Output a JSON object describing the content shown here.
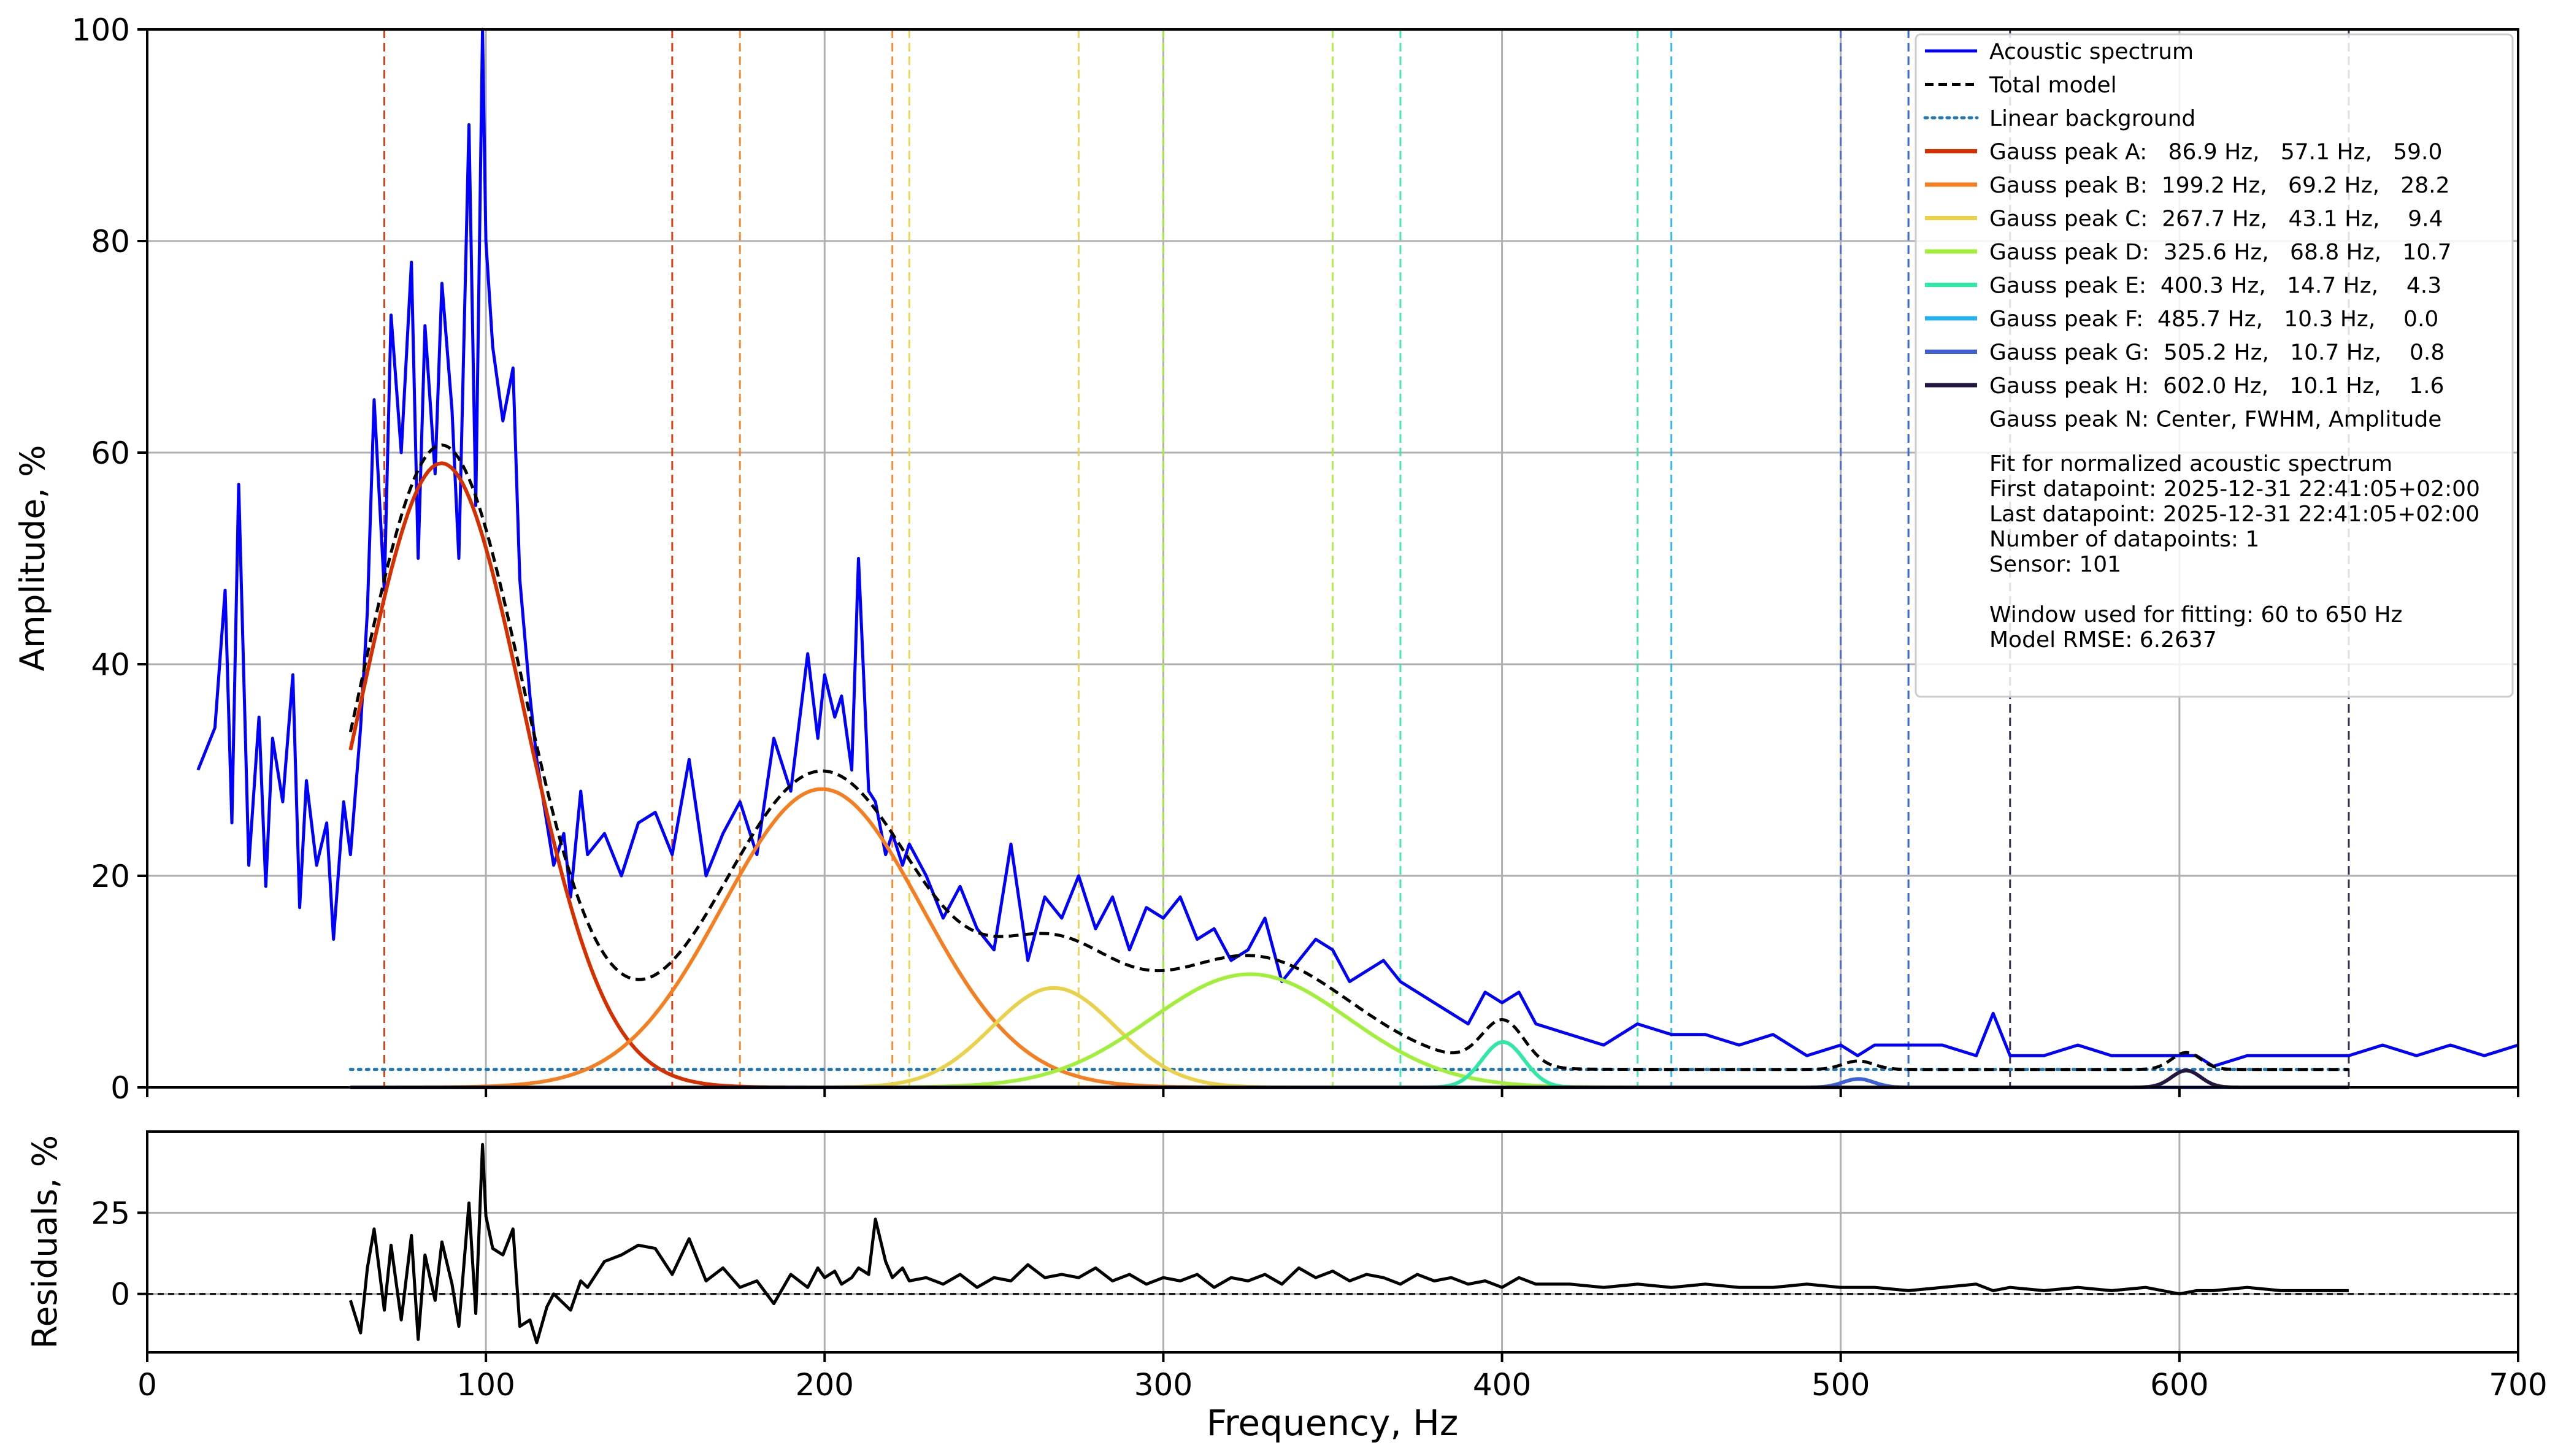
{
  "chart_data": [
    {
      "type": "line",
      "ylabel": "Amplitude, %",
      "xlim": [
        0,
        700
      ],
      "ylim": [
        0,
        100
      ],
      "x_ticks": [
        0,
        100,
        200,
        300,
        400,
        500,
        600,
        700
      ],
      "y_ticks": [
        0,
        20,
        40,
        60,
        80,
        100
      ],
      "grid": true,
      "legend_position": "top-right",
      "fit_window": [
        60,
        650
      ],
      "background": {
        "level": 1.7
      },
      "series": [
        {
          "name": "Acoustic spectrum",
          "color": "#0000ff",
          "x": [
            15,
            20,
            23,
            25,
            27,
            30,
            33,
            35,
            37,
            40,
            43,
            45,
            47,
            50,
            53,
            55,
            58,
            60,
            63,
            65,
            67,
            70,
            72,
            75,
            78,
            80,
            82,
            85,
            87,
            90,
            92,
            95,
            97,
            99,
            100,
            102,
            105,
            108,
            110,
            113,
            115,
            118,
            120,
            123,
            125,
            128,
            130,
            135,
            140,
            145,
            150,
            155,
            160,
            165,
            170,
            175,
            180,
            185,
            190,
            195,
            198,
            200,
            203,
            205,
            208,
            210,
            213,
            215,
            218,
            220,
            223,
            225,
            230,
            235,
            240,
            245,
            250,
            255,
            260,
            265,
            270,
            275,
            280,
            285,
            290,
            295,
            300,
            305,
            310,
            315,
            320,
            325,
            330,
            335,
            340,
            345,
            350,
            355,
            360,
            365,
            370,
            375,
            380,
            385,
            390,
            395,
            400,
            405,
            410,
            420,
            430,
            440,
            450,
            460,
            470,
            480,
            490,
            500,
            505,
            510,
            520,
            530,
            540,
            545,
            550,
            560,
            570,
            580,
            590,
            600,
            605,
            610,
            620,
            630,
            640,
            650,
            660,
            670,
            680,
            690,
            700
          ],
          "y": [
            30,
            34,
            47,
            25,
            57,
            21,
            35,
            19,
            33,
            27,
            39,
            17,
            29,
            21,
            25,
            14,
            27,
            22,
            34,
            45,
            65,
            47,
            73,
            60,
            78,
            50,
            72,
            58,
            76,
            64,
            50,
            91,
            55,
            100,
            80,
            70,
            63,
            68,
            48,
            37,
            31,
            25,
            21,
            24,
            18,
            28,
            22,
            24,
            20,
            25,
            26,
            22,
            31,
            20,
            24,
            27,
            22,
            33,
            28,
            41,
            33,
            39,
            35,
            37,
            30,
            50,
            28,
            27,
            22,
            24,
            21,
            23,
            20,
            16,
            19,
            15,
            13,
            23,
            12,
            18,
            16,
            20,
            15,
            18,
            13,
            17,
            16,
            18,
            14,
            15,
            12,
            13,
            16,
            10,
            12,
            14,
            13,
            10,
            11,
            12,
            10,
            9,
            8,
            7,
            6,
            9,
            8,
            9,
            6,
            5,
            4,
            6,
            5,
            5,
            4,
            5,
            3,
            4,
            3,
            4,
            4,
            4,
            3,
            7,
            3,
            3,
            4,
            3,
            3,
            3,
            3,
            2,
            3,
            3,
            3,
            3,
            4,
            3,
            4,
            3,
            4
          ]
        },
        {
          "name": "Total model",
          "color": "#000000",
          "style": "dashed",
          "x_range": [
            60,
            650
          ]
        },
        {
          "name": "Linear background",
          "color": "#1f77b4",
          "style": "dotted",
          "x_range": [
            60,
            650
          ],
          "value": 1.7
        }
      ],
      "peaks": [
        {
          "label": "Gauss peak A:   86.9 Hz,   57.1 Hz,   59.0",
          "center": 86.9,
          "fwhm": 57.1,
          "amplitude": 59.0,
          "color": "#d62f00",
          "window": [
            70,
            155
          ]
        },
        {
          "label": "Gauss peak B:  199.2 Hz,   69.2 Hz,   28.2",
          "center": 199.2,
          "fwhm": 69.2,
          "amplitude": 28.2,
          "color": "#f57f20",
          "window": [
            175,
            220
          ]
        },
        {
          "label": "Gauss peak C:  267.7 Hz,   43.1 Hz,    9.4",
          "center": 267.7,
          "fwhm": 43.1,
          "amplitude": 9.4,
          "color": "#ead14a",
          "window": [
            225,
            275
          ]
        },
        {
          "label": "Gauss peak D:  325.6 Hz,   68.8 Hz,   10.7",
          "center": 325.6,
          "fwhm": 68.8,
          "amplitude": 10.7,
          "color": "#a2ef3a",
          "window": [
            300,
            350
          ]
        },
        {
          "label": "Gauss peak E:  400.3 Hz,   14.7 Hz,    4.3",
          "center": 400.3,
          "fwhm": 14.7,
          "amplitude": 4.3,
          "color": "#2ee8a4",
          "window": [
            370,
            440
          ]
        },
        {
          "label": "Gauss peak F:  485.7 Hz,   10.3 Hz,    0.0",
          "center": 485.7,
          "fwhm": 10.3,
          "amplitude": 0.0,
          "color": "#21b2ef",
          "window": [
            450,
            520
          ]
        },
        {
          "label": "Gauss peak G:  505.2 Hz,   10.7 Hz,    0.8",
          "center": 505.2,
          "fwhm": 10.7,
          "amplitude": 0.8,
          "color": "#3c60d8",
          "window": [
            500,
            520
          ]
        },
        {
          "label": "Gauss peak H:  602.0 Hz,   10.1 Hz,    1.6",
          "center": 602.0,
          "fwhm": 10.1,
          "amplitude": 1.6,
          "color": "#231640",
          "window": [
            550,
            650
          ]
        }
      ],
      "legend_entries": [
        "Acoustic spectrum",
        "Total model",
        "Linear background",
        "Gauss peak A:   86.9 Hz,   57.1 Hz,   59.0",
        "Gauss peak B:  199.2 Hz,   69.2 Hz,   28.2",
        "Gauss peak C:  267.7 Hz,   43.1 Hz,    9.4",
        "Gauss peak D:  325.6 Hz,   68.8 Hz,   10.7",
        "Gauss peak E:  400.3 Hz,   14.7 Hz,    4.3",
        "Gauss peak F:  485.7 Hz,   10.3 Hz,    0.0",
        "Gauss peak G:  505.2 Hz,   10.7 Hz,    0.8",
        "Gauss peak H:  602.0 Hz,   10.1 Hz,    1.6",
        "Gauss peak N: Center, FWHM, Amplitude"
      ],
      "legend_note_lines": [
        "",
        "Fit for normalized acoustic spectrum",
        "First datapoint: 2025-12-31 22:41:05+02:00",
        "Last datapoint: 2025-12-31 22:41:05+02:00",
        "Number of datapoints: 1",
        "Sensor: 101",
        "",
        "Window used for fitting: 60 to 650 Hz",
        "Model RMSE: 6.2637"
      ]
    },
    {
      "type": "line",
      "xlabel": "Frequency, Hz",
      "ylabel": "Residuals, %",
      "xlim": [
        0,
        700
      ],
      "ylim": [
        -18,
        50
      ],
      "x_ticks": [
        0,
        100,
        200,
        300,
        400,
        500,
        600,
        700
      ],
      "y_ticks": [
        0,
        25
      ],
      "grid": true,
      "zero_line": "dashed",
      "series": [
        {
          "name": "Residuals",
          "color": "#000000",
          "x": [
            60,
            63,
            65,
            67,
            70,
            72,
            75,
            78,
            80,
            82,
            85,
            87,
            90,
            92,
            95,
            97,
            99,
            100,
            102,
            105,
            108,
            110,
            113,
            115,
            118,
            120,
            123,
            125,
            128,
            130,
            135,
            140,
            145,
            150,
            155,
            160,
            165,
            170,
            175,
            180,
            185,
            190,
            195,
            198,
            200,
            203,
            205,
            208,
            210,
            213,
            215,
            218,
            220,
            223,
            225,
            230,
            235,
            240,
            245,
            250,
            255,
            260,
            265,
            270,
            275,
            280,
            285,
            290,
            295,
            300,
            305,
            310,
            315,
            320,
            325,
            330,
            335,
            340,
            345,
            350,
            355,
            360,
            365,
            370,
            375,
            380,
            385,
            390,
            395,
            400,
            405,
            410,
            420,
            430,
            440,
            450,
            460,
            470,
            480,
            490,
            500,
            505,
            510,
            520,
            530,
            540,
            545,
            550,
            560,
            570,
            580,
            590,
            600,
            605,
            610,
            620,
            630,
            640,
            650
          ],
          "y": [
            -2,
            -12,
            8,
            20,
            -5,
            15,
            -8,
            18,
            -14,
            12,
            -2,
            16,
            3,
            -10,
            28,
            -6,
            46,
            24,
            14,
            12,
            20,
            -10,
            -8,
            -15,
            -4,
            0,
            -3,
            -5,
            4,
            2,
            10,
            12,
            15,
            14,
            6,
            17,
            4,
            8,
            2,
            4,
            -3,
            6,
            2,
            8,
            5,
            7,
            3,
            5,
            8,
            6,
            23,
            10,
            5,
            8,
            4,
            5,
            3,
            6,
            2,
            5,
            4,
            9,
            5,
            6,
            5,
            8,
            4,
            6,
            3,
            5,
            4,
            6,
            2,
            5,
            4,
            6,
            3,
            8,
            5,
            7,
            4,
            6,
            5,
            3,
            6,
            4,
            5,
            3,
            4,
            2,
            5,
            3,
            3,
            2,
            3,
            2,
            3,
            2,
            2,
            3,
            2,
            2,
            2,
            1,
            2,
            3,
            1,
            2,
            1,
            2,
            1,
            2,
            0,
            1,
            1,
            2,
            1,
            1,
            1
          ]
        }
      ]
    }
  ]
}
